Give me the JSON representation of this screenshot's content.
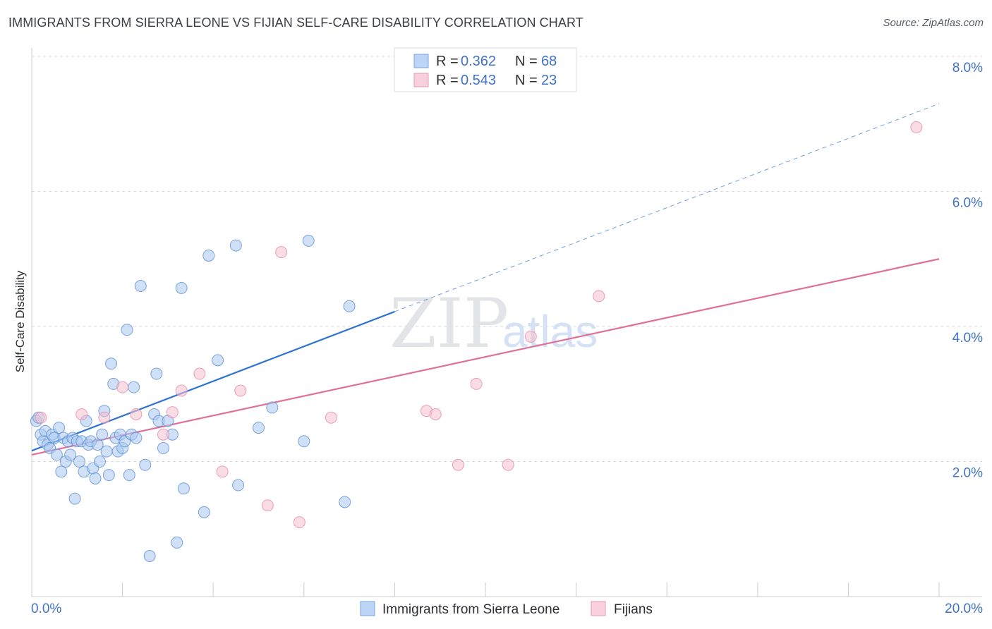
{
  "header": {
    "title": "IMMIGRANTS FROM SIERRA LEONE VS FIJIAN SELF-CARE DISABILITY CORRELATION CHART",
    "source": "Source: ZipAtlas.com"
  },
  "watermark": {
    "zip": "ZIP",
    "atlas": "atlas"
  },
  "colors": {
    "blue_fill": "#a9c8f0",
    "blue_stroke": "#5b8fd6",
    "blue_line": "#2f73d0",
    "pink_fill": "#f5c0d0",
    "pink_stroke": "#e58aa8",
    "pink_line": "#e0709a",
    "grid": "#d8dbe0",
    "tick_text": "#3f72c8"
  },
  "legend": {
    "rows": [
      {
        "r_label": "R =",
        "r_value": "0.362",
        "n_label": "N =",
        "n_value": "68"
      },
      {
        "r_label": "R =",
        "r_value": "0.543",
        "n_label": "N =",
        "n_value": "23"
      }
    ]
  },
  "chart_data": {
    "type": "scatter",
    "xlabel": "",
    "ylabel": "Self-Care Disability",
    "xlim": [
      0,
      20
    ],
    "ylim": [
      0,
      8
    ],
    "x_tick_labels": [
      "0.0%",
      "20.0%"
    ],
    "y_tick_labels": [
      "2.0%",
      "4.0%",
      "6.0%",
      "8.0%"
    ],
    "y_ticks": [
      2,
      4,
      6,
      8
    ],
    "grid": "horizontal dashed",
    "legend_placement": "top-center",
    "series": [
      {
        "name": "Immigrants from Sierra Leone",
        "color": "blue",
        "trend": {
          "x": [
            0,
            8
          ],
          "y": [
            2.16,
            4.22
          ],
          "extended_to": [
            20,
            7.3
          ]
        },
        "points": [
          [
            0.1,
            2.6
          ],
          [
            0.15,
            2.65
          ],
          [
            0.2,
            2.4
          ],
          [
            0.25,
            2.3
          ],
          [
            0.3,
            2.45
          ],
          [
            0.35,
            2.25
          ],
          [
            0.4,
            2.2
          ],
          [
            0.45,
            2.4
          ],
          [
            0.5,
            2.35
          ],
          [
            0.55,
            2.1
          ],
          [
            0.6,
            2.5
          ],
          [
            0.65,
            1.85
          ],
          [
            0.7,
            2.35
          ],
          [
            0.75,
            2.0
          ],
          [
            0.8,
            2.3
          ],
          [
            0.85,
            2.1
          ],
          [
            0.9,
            2.35
          ],
          [
            0.95,
            1.45
          ],
          [
            1.0,
            2.3
          ],
          [
            1.05,
            2.0
          ],
          [
            1.1,
            2.3
          ],
          [
            1.15,
            1.85
          ],
          [
            1.2,
            2.6
          ],
          [
            1.25,
            2.25
          ],
          [
            1.3,
            2.3
          ],
          [
            1.35,
            1.9
          ],
          [
            1.4,
            1.75
          ],
          [
            1.45,
            2.25
          ],
          [
            1.5,
            2.0
          ],
          [
            1.55,
            2.4
          ],
          [
            1.6,
            2.75
          ],
          [
            1.65,
            2.15
          ],
          [
            1.7,
            1.8
          ],
          [
            1.75,
            3.45
          ],
          [
            1.8,
            3.15
          ],
          [
            1.85,
            2.35
          ],
          [
            1.9,
            2.15
          ],
          [
            1.95,
            2.4
          ],
          [
            2.0,
            2.2
          ],
          [
            2.05,
            2.3
          ],
          [
            2.1,
            3.95
          ],
          [
            2.15,
            1.8
          ],
          [
            2.2,
            2.4
          ],
          [
            2.25,
            3.1
          ],
          [
            2.3,
            2.35
          ],
          [
            2.4,
            4.6
          ],
          [
            2.5,
            1.95
          ],
          [
            2.6,
            0.6
          ],
          [
            2.7,
            2.7
          ],
          [
            2.75,
            3.3
          ],
          [
            2.8,
            2.6
          ],
          [
            2.9,
            2.2
          ],
          [
            3.0,
            2.6
          ],
          [
            3.1,
            2.4
          ],
          [
            3.2,
            0.8
          ],
          [
            3.3,
            4.57
          ],
          [
            3.35,
            1.6
          ],
          [
            3.8,
            1.25
          ],
          [
            3.9,
            5.05
          ],
          [
            4.1,
            3.5
          ],
          [
            4.5,
            5.2
          ],
          [
            4.55,
            1.65
          ],
          [
            5.0,
            2.5
          ],
          [
            5.3,
            2.8
          ],
          [
            6.0,
            2.3
          ],
          [
            6.1,
            5.27
          ],
          [
            6.9,
            1.4
          ],
          [
            7.0,
            4.3
          ]
        ]
      },
      {
        "name": "Fijians",
        "color": "pink",
        "trend": {
          "x": [
            0,
            20
          ],
          "y": [
            2.1,
            5.0
          ]
        },
        "points": [
          [
            0.2,
            2.65
          ],
          [
            1.1,
            2.7
          ],
          [
            1.6,
            2.65
          ],
          [
            2.0,
            3.1
          ],
          [
            2.3,
            2.7
          ],
          [
            2.9,
            2.4
          ],
          [
            3.1,
            2.73
          ],
          [
            3.3,
            3.05
          ],
          [
            3.7,
            3.3
          ],
          [
            4.2,
            1.85
          ],
          [
            4.6,
            3.05
          ],
          [
            5.2,
            1.35
          ],
          [
            5.5,
            5.1
          ],
          [
            5.9,
            1.1
          ],
          [
            6.6,
            2.65
          ],
          [
            8.7,
            2.75
          ],
          [
            8.9,
            2.7
          ],
          [
            9.4,
            1.95
          ],
          [
            9.8,
            3.15
          ],
          [
            10.5,
            1.95
          ],
          [
            11.0,
            3.85
          ],
          [
            12.5,
            4.45
          ],
          [
            19.5,
            6.95
          ]
        ]
      }
    ]
  }
}
